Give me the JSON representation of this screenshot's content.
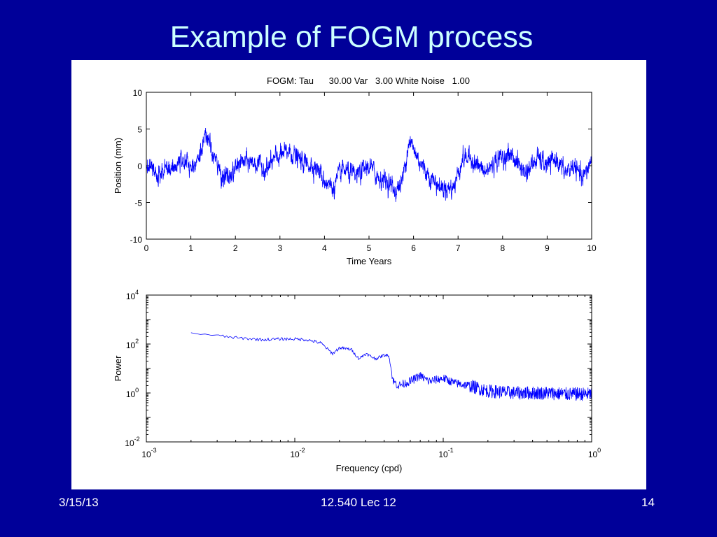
{
  "slide": {
    "title": "Example of FOGM process",
    "footer_date": "3/15/13",
    "footer_course": "12.540 Lec 12",
    "footer_page": "14"
  },
  "chart_data": [
    {
      "type": "line",
      "title": "FOGM: Tau      30.00 Var   3.00 White Noise   1.00",
      "xlabel": "Time Years",
      "ylabel": "Position (mm)",
      "xlim": [
        0,
        10
      ],
      "ylim": [
        -10,
        10
      ],
      "x_ticks": [
        "0",
        "1",
        "2",
        "3",
        "4",
        "5",
        "6",
        "7",
        "8",
        "9",
        "10"
      ],
      "y_ticks": [
        "-10",
        "-5",
        "0",
        "5",
        "10"
      ],
      "series_color": "#0000ff",
      "process": {
        "tau_days": 30.0,
        "variance": 3.0,
        "white_noise": 1.0
      },
      "anchors": {
        "x": [
          0,
          0.3,
          0.5,
          0.8,
          1.0,
          1.2,
          1.35,
          1.5,
          1.7,
          1.9,
          2.1,
          2.4,
          2.7,
          2.9,
          3.2,
          3.5,
          3.8,
          4.0,
          4.2,
          4.4,
          4.7,
          5.0,
          5.2,
          5.4,
          5.6,
          5.75,
          5.9,
          6.1,
          6.3,
          6.6,
          6.9,
          7.1,
          7.3,
          7.6,
          7.9,
          8.2,
          8.5,
          8.8,
          9.0,
          9.2,
          9.4,
          9.6,
          9.8,
          10.0
        ],
        "y": [
          0,
          -1.5,
          -0.5,
          1.0,
          0,
          1.5,
          4.0,
          1.5,
          -1.5,
          -1.5,
          0.5,
          0.5,
          -0.5,
          1.0,
          2.0,
          0.5,
          0.0,
          -2.0,
          -3.0,
          -0.5,
          -1.5,
          0.0,
          -1.5,
          -2.0,
          -3.5,
          -2.0,
          3.5,
          1.0,
          -1.0,
          -3.0,
          -3.0,
          1.0,
          1.0,
          -1.0,
          1.0,
          1.5,
          -1.0,
          1.0,
          0.0,
          1.0,
          -1.0,
          0.0,
          -2.0,
          1.0
        ]
      }
    },
    {
      "type": "line",
      "xlabel": "Frequency (cpd)",
      "ylabel": "Power",
      "x_scale": "log",
      "y_scale": "log",
      "xlim": [
        0.001,
        1
      ],
      "ylim": [
        0.01,
        10000
      ],
      "x_ticks": [
        {
          "base": "10",
          "exp": "-3"
        },
        {
          "base": "10",
          "exp": "-2"
        },
        {
          "base": "10",
          "exp": "-1"
        },
        {
          "base": "10",
          "exp": "0"
        }
      ],
      "y_ticks": [
        {
          "base": "10",
          "exp": "-2"
        },
        {
          "base": "10",
          "exp": "0"
        },
        {
          "base": "10",
          "exp": "2"
        },
        {
          "base": "10",
          "exp": "4"
        }
      ],
      "series_color": "#0000ff",
      "anchors": {
        "x": [
          0.002,
          0.003,
          0.004,
          0.006,
          0.008,
          0.01,
          0.012,
          0.015,
          0.018,
          0.02,
          0.024,
          0.027,
          0.03,
          0.035,
          0.04,
          0.043,
          0.046,
          0.05,
          0.06,
          0.07,
          0.08,
          0.1,
          0.12,
          0.15,
          0.2,
          0.3,
          0.5,
          0.7,
          1.0
        ],
        "y": [
          300,
          220,
          180,
          150,
          160,
          160,
          150,
          110,
          40,
          70,
          60,
          25,
          40,
          25,
          35,
          35,
          3,
          2,
          3,
          5,
          3,
          4,
          2.5,
          2,
          1.2,
          1,
          1,
          0.9,
          0.9
        ]
      }
    }
  ]
}
